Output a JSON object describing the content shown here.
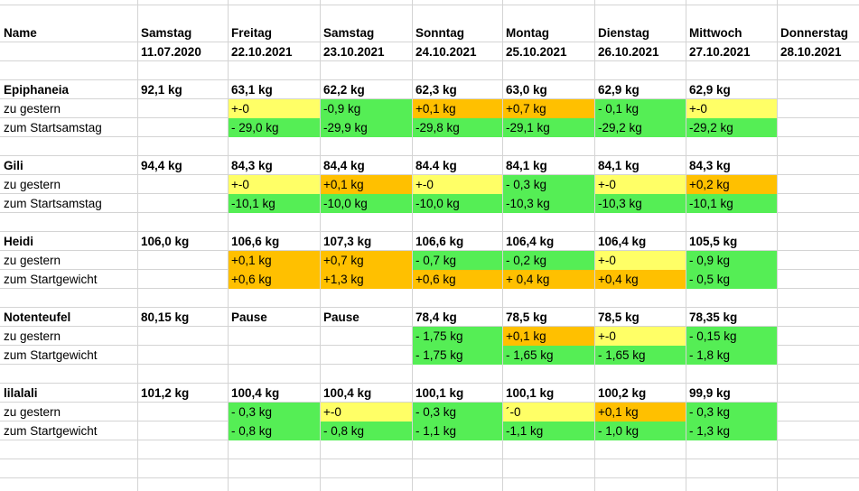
{
  "header": {
    "name_label": "Name",
    "days": [
      {
        "weekday": "Samstag",
        "date": "11.07.2020"
      },
      {
        "weekday": "Freitag",
        "date": "22.10.2021"
      },
      {
        "weekday": "Samstag",
        "date": "23.10.2021"
      },
      {
        "weekday": "Sonntag",
        "date": "24.10.2021"
      },
      {
        "weekday": "Montag",
        "date": "25.10.2021"
      },
      {
        "weekday": "Dienstag",
        "date": "26.10.2021"
      },
      {
        "weekday": "Mittwoch",
        "date": "27.10.2021"
      },
      {
        "weekday": "Donnerstag",
        "date": "28.10.2021"
      }
    ]
  },
  "colors": {
    "yellow": "#ffff66",
    "green": "#55ee55",
    "orange": "#ffc000"
  },
  "people": [
    {
      "name": "Epiphaneia",
      "start": "92,1 kg",
      "weights": [
        "63,1 kg",
        "62,2 kg",
        "62,3 kg",
        "63,0 kg",
        "62,9 kg",
        "62,9 kg",
        ""
      ],
      "diff_label": "zu gestern",
      "diff": [
        {
          "v": "+-0",
          "c": "y"
        },
        {
          "v": "-0,9 kg",
          "c": "g"
        },
        {
          "v": "+0,1 kg",
          "c": "o"
        },
        {
          "v": "+0,7 kg",
          "c": "o"
        },
        {
          "v": "- 0,1 kg",
          "c": "g"
        },
        {
          "v": "+-0",
          "c": "y"
        },
        {
          "v": "",
          "c": ""
        }
      ],
      "total_label": "zum Startsamstag",
      "total": [
        {
          "v": "- 29,0 kg",
          "c": "g"
        },
        {
          "v": "-29,9 kg",
          "c": "g"
        },
        {
          "v": "-29,8 kg",
          "c": "g"
        },
        {
          "v": "-29,1 kg",
          "c": "g"
        },
        {
          "v": "-29,2 kg",
          "c": "g"
        },
        {
          "v": "-29,2 kg",
          "c": "g"
        },
        {
          "v": "",
          "c": ""
        }
      ]
    },
    {
      "name": "Gili",
      "start": "94,4 kg",
      "weights": [
        "84,3 kg",
        "84,4 kg",
        "84.4 kg",
        "84,1 kg",
        "84,1 kg",
        "84,3 kg",
        ""
      ],
      "diff_label": "zu gestern",
      "diff": [
        {
          "v": "+-0",
          "c": "y"
        },
        {
          "v": "+0,1 kg",
          "c": "o"
        },
        {
          "v": "+-0",
          "c": "y"
        },
        {
          "v": "- 0,3 kg",
          "c": "g"
        },
        {
          "v": "+-0",
          "c": "y"
        },
        {
          "v": "+0,2 kg",
          "c": "o"
        },
        {
          "v": "",
          "c": ""
        }
      ],
      "total_label": "zum Startsamstag",
      "total": [
        {
          "v": "-10,1 kg",
          "c": "g"
        },
        {
          "v": "-10,0 kg",
          "c": "g"
        },
        {
          "v": "-10,0 kg",
          "c": "g"
        },
        {
          "v": "-10,3 kg",
          "c": "g"
        },
        {
          "v": "-10,3 kg",
          "c": "g"
        },
        {
          "v": "-10,1 kg",
          "c": "g"
        },
        {
          "v": "",
          "c": ""
        }
      ]
    },
    {
      "name": "Heidi",
      "start": "106,0 kg",
      "weights": [
        "106,6 kg",
        "107,3 kg",
        "106,6 kg",
        "106,4 kg",
        "106,4 kg",
        "105,5 kg",
        ""
      ],
      "diff_label": "zu gestern",
      "diff": [
        {
          "v": "+0,1 kg",
          "c": "o"
        },
        {
          "v": "+0,7 kg",
          "c": "o"
        },
        {
          "v": "- 0,7 kg",
          "c": "g"
        },
        {
          "v": "- 0,2 kg",
          "c": "g"
        },
        {
          "v": "+-0",
          "c": "y"
        },
        {
          "v": "- 0,9 kg",
          "c": "g"
        },
        {
          "v": "",
          "c": ""
        }
      ],
      "total_label": "zum Startgewicht",
      "total": [
        {
          "v": "+0,6 kg",
          "c": "o"
        },
        {
          "v": "+1,3 kg",
          "c": "o"
        },
        {
          "v": "+0,6 kg",
          "c": "o"
        },
        {
          "v": "+ 0,4 kg",
          "c": "o"
        },
        {
          "v": "+0,4 kg",
          "c": "o"
        },
        {
          "v": "- 0,5 kg",
          "c": "g"
        },
        {
          "v": "",
          "c": ""
        }
      ]
    },
    {
      "name": "Notenteufel",
      "start": "80,15 kg",
      "weights": [
        "Pause",
        "Pause",
        "78,4 kg",
        "78,5 kg",
        "78,5 kg",
        "78,35 kg",
        ""
      ],
      "diff_label": "zu gestern",
      "diff": [
        {
          "v": "",
          "c": ""
        },
        {
          "v": "",
          "c": ""
        },
        {
          "v": "- 1,75 kg",
          "c": "g"
        },
        {
          "v": "+0,1 kg",
          "c": "o"
        },
        {
          "v": "+-0",
          "c": "y"
        },
        {
          "v": "- 0,15 kg",
          "c": "g"
        },
        {
          "v": "",
          "c": ""
        }
      ],
      "total_label": "zum Startgewicht",
      "total": [
        {
          "v": "",
          "c": ""
        },
        {
          "v": "",
          "c": ""
        },
        {
          "v": "- 1,75 kg",
          "c": "g"
        },
        {
          "v": "- 1,65 kg",
          "c": "g"
        },
        {
          "v": "- 1,65 kg",
          "c": "g"
        },
        {
          "v": "- 1,8 kg",
          "c": "g"
        },
        {
          "v": "",
          "c": ""
        }
      ]
    },
    {
      "name": "lilalali",
      "start": "101,2 kg",
      "weights": [
        "100,4 kg",
        "100,4 kg",
        "100,1 kg",
        "100,1 kg",
        "100,2 kg",
        "99,9 kg",
        ""
      ],
      "diff_label": "zu gestern",
      "diff": [
        {
          "v": "- 0,3 kg",
          "c": "g"
        },
        {
          "v": "+-0",
          "c": "y"
        },
        {
          "v": "- 0,3 kg",
          "c": "g"
        },
        {
          "v": "´-0",
          "c": "y"
        },
        {
          "v": "+0,1 kg",
          "c": "o"
        },
        {
          "v": "- 0,3 kg",
          "c": "g"
        },
        {
          "v": "",
          "c": ""
        }
      ],
      "total_label": "zum Startgewicht",
      "total": [
        {
          "v": "- 0,8 kg",
          "c": "g"
        },
        {
          "v": "- 0,8 kg",
          "c": "g"
        },
        {
          "v": "- 1,1 kg",
          "c": "g"
        },
        {
          "v": "-1,1 kg",
          "c": "g"
        },
        {
          "v": "- 1,0 kg",
          "c": "g"
        },
        {
          "v": "- 1,3 kg",
          "c": "g"
        },
        {
          "v": "",
          "c": ""
        }
      ]
    }
  ]
}
